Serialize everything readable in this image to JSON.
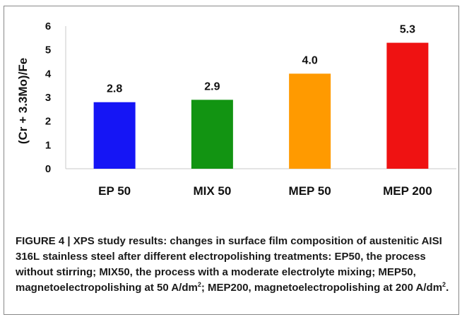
{
  "chart_data": {
    "type": "bar",
    "categories": [
      "EP 50",
      "MIX 50",
      "MEP 50",
      "MEP 200"
    ],
    "values": [
      2.8,
      2.9,
      4.0,
      5.3
    ],
    "data_labels": [
      "2.8",
      "2.9",
      "4.0",
      "5.3"
    ],
    "colors": [
      "#1515f5",
      "#129412",
      "#ff9a00",
      "#ef1212"
    ],
    "title": "",
    "xlabel": "",
    "ylabel": "(Cr + 3.3Mo)/Fe",
    "ylim": [
      0,
      6
    ],
    "yticks": [
      "0",
      "1",
      "2",
      "3",
      "4",
      "5",
      "6"
    ],
    "grid": false,
    "legend": "none"
  },
  "caption": {
    "main": "FIGURE 4 | XPS study results: changes in surface film composition of austenitic AISI 316L stainless steel after different electropolishing treatments: EP50, the process without stirring; MIX50, the process with a moderate electrolyte mixing; MEP50, magnetoelectropolishing at 50 A/dm",
    "sup1": "2",
    "mid": "; MEP200, magnetoelectropolishing at 200 A/dm",
    "sup2": "2",
    "end": "."
  }
}
